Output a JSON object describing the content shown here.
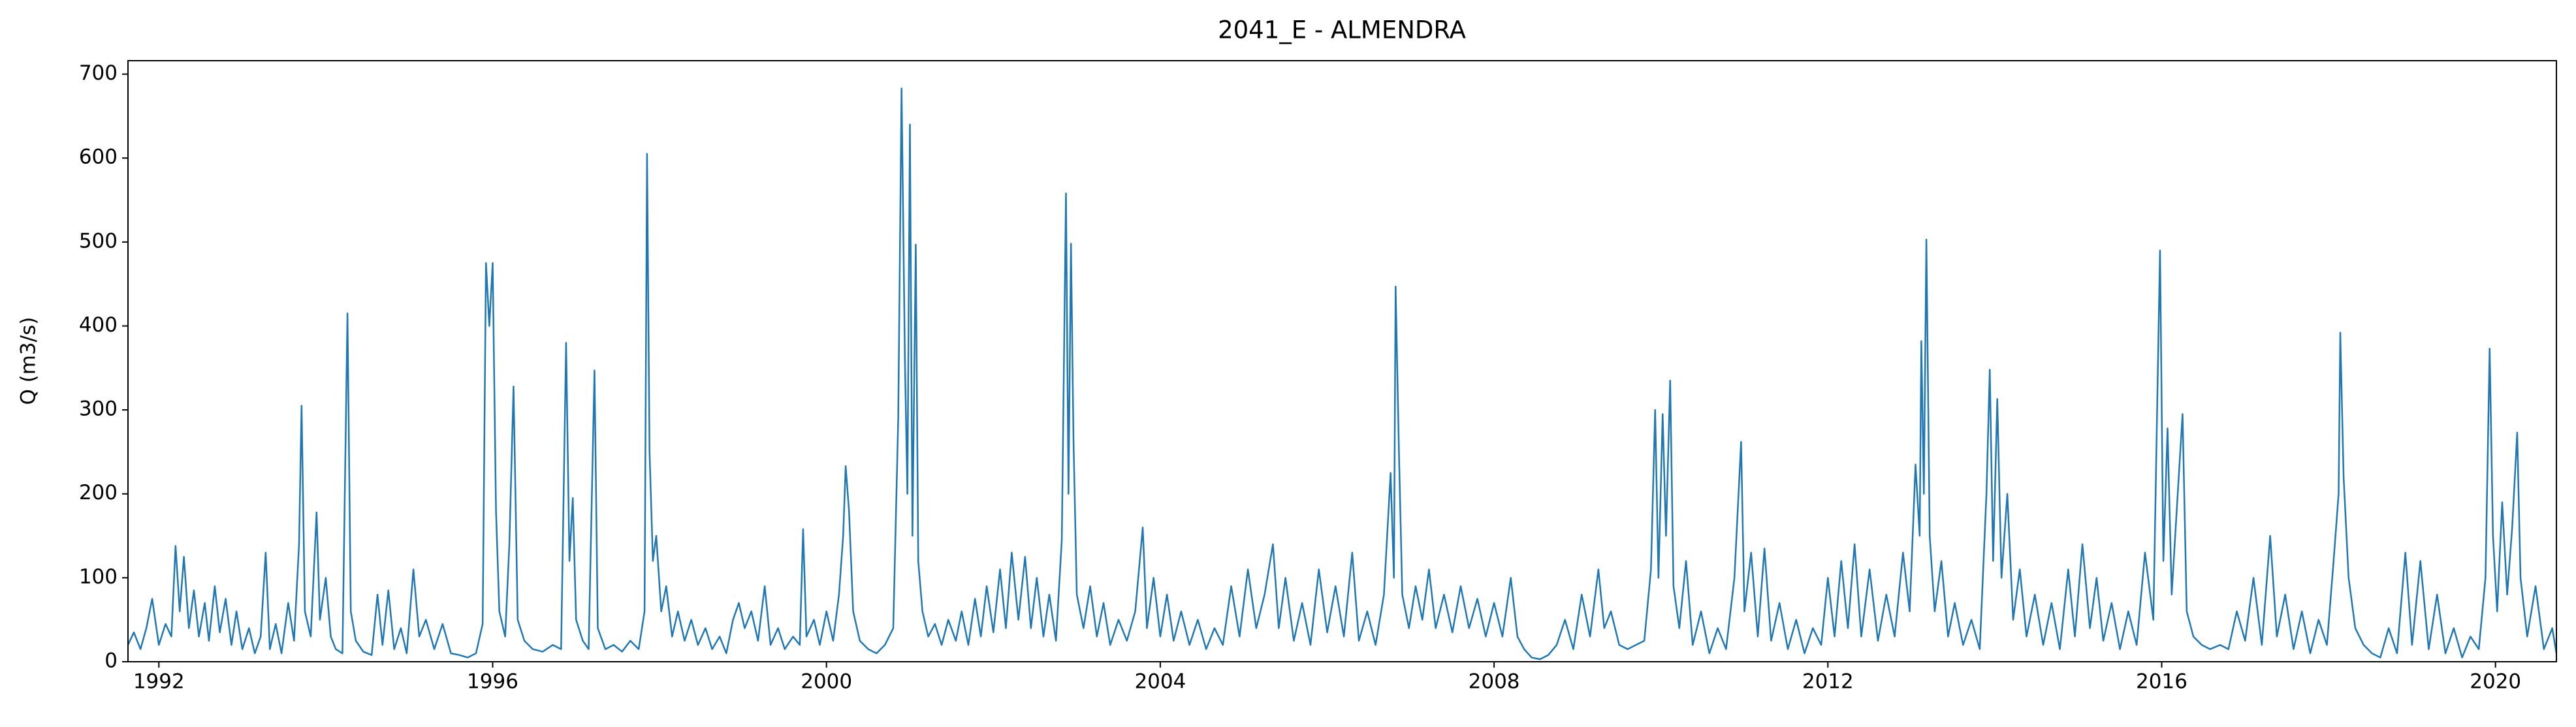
{
  "chart_data": {
    "type": "line",
    "title": "2041_E - ALMENDRA",
    "ylabel": "Q (m3/s)",
    "color": "#1f77b4",
    "xlim": [
      1991.63,
      2020.73
    ],
    "xticks": [
      1992,
      1996,
      2000,
      2004,
      2008,
      2012,
      2016,
      2020
    ],
    "ylim": [
      0,
      716
    ],
    "yticks": [
      0,
      100,
      200,
      300,
      400,
      500,
      600,
      700
    ],
    "x": [
      1991.63,
      1991.7,
      1991.78,
      1991.85,
      1991.92,
      1992.0,
      1992.08,
      1992.15,
      1992.2,
      1992.25,
      1992.3,
      1992.36,
      1992.42,
      1992.48,
      1992.55,
      1992.6,
      1992.67,
      1992.73,
      1992.8,
      1992.87,
      1992.93,
      1993.0,
      1993.08,
      1993.15,
      1993.22,
      1993.28,
      1993.33,
      1993.4,
      1993.47,
      1993.55,
      1993.62,
      1993.68,
      1993.71,
      1993.75,
      1993.82,
      1993.89,
      1993.93,
      1994.0,
      1994.06,
      1994.12,
      1994.2,
      1994.26,
      1994.3,
      1994.36,
      1994.45,
      1994.55,
      1994.62,
      1994.68,
      1994.75,
      1994.82,
      1994.9,
      1994.97,
      1995.05,
      1995.12,
      1995.2,
      1995.3,
      1995.4,
      1995.5,
      1995.6,
      1995.7,
      1995.8,
      1995.88,
      1995.92,
      1995.96,
      1996.0,
      1996.04,
      1996.08,
      1996.15,
      1996.2,
      1996.25,
      1996.3,
      1996.38,
      1996.48,
      1996.6,
      1996.72,
      1996.82,
      1996.88,
      1996.92,
      1996.96,
      1997.0,
      1997.08,
      1997.15,
      1997.22,
      1997.26,
      1997.35,
      1997.45,
      1997.55,
      1997.65,
      1997.75,
      1997.82,
      1997.85,
      1997.88,
      1997.92,
      1997.96,
      1998.02,
      1998.08,
      1998.15,
      1998.22,
      1998.3,
      1998.38,
      1998.46,
      1998.55,
      1998.63,
      1998.72,
      1998.8,
      1998.88,
      1998.95,
      1999.02,
      1999.1,
      1999.18,
      1999.26,
      1999.33,
      1999.42,
      1999.5,
      1999.6,
      1999.68,
      1999.72,
      1999.76,
      1999.85,
      1999.92,
      2000.0,
      2000.08,
      2000.15,
      2000.2,
      2000.23,
      2000.27,
      2000.32,
      2000.4,
      2000.5,
      2000.6,
      2000.7,
      2000.8,
      2000.86,
      2000.9,
      2000.94,
      2000.97,
      2001.0,
      2001.03,
      2001.07,
      2001.1,
      2001.15,
      2001.22,
      2001.3,
      2001.38,
      2001.46,
      2001.55,
      2001.62,
      2001.7,
      2001.78,
      2001.85,
      2001.92,
      2002.0,
      2002.08,
      2002.15,
      2002.22,
      2002.3,
      2002.38,
      2002.45,
      2002.52,
      2002.6,
      2002.67,
      2002.75,
      2002.82,
      2002.87,
      2002.9,
      2002.93,
      2002.96,
      2003.0,
      2003.08,
      2003.16,
      2003.24,
      2003.32,
      2003.4,
      2003.5,
      2003.6,
      2003.7,
      2003.79,
      2003.84,
      2003.92,
      2004.0,
      2004.08,
      2004.16,
      2004.25,
      2004.35,
      2004.45,
      2004.55,
      2004.65,
      2004.75,
      2004.85,
      2004.95,
      2005.05,
      2005.15,
      2005.25,
      2005.35,
      2005.42,
      2005.5,
      2005.6,
      2005.7,
      2005.8,
      2005.9,
      2006.0,
      2006.1,
      2006.2,
      2006.3,
      2006.38,
      2006.48,
      2006.58,
      2006.68,
      2006.76,
      2006.8,
      2006.82,
      2006.86,
      2006.9,
      2006.98,
      2007.06,
      2007.14,
      2007.22,
      2007.3,
      2007.4,
      2007.5,
      2007.6,
      2007.7,
      2007.8,
      2007.9,
      2008.0,
      2008.1,
      2008.2,
      2008.28,
      2008.36,
      2008.45,
      2008.55,
      2008.65,
      2008.75,
      2008.85,
      2008.95,
      2009.05,
      2009.15,
      2009.25,
      2009.32,
      2009.4,
      2009.5,
      2009.6,
      2009.7,
      2009.8,
      2009.88,
      2009.93,
      2009.97,
      2010.02,
      2010.06,
      2010.11,
      2010.15,
      2010.22,
      2010.3,
      2010.38,
      2010.48,
      2010.58,
      2010.68,
      2010.78,
      2010.88,
      2010.96,
      2011.0,
      2011.08,
      2011.16,
      2011.24,
      2011.32,
      2011.42,
      2011.52,
      2011.62,
      2011.72,
      2011.82,
      2011.92,
      2012.0,
      2012.08,
      2012.16,
      2012.24,
      2012.32,
      2012.4,
      2012.5,
      2012.6,
      2012.7,
      2012.8,
      2012.9,
      2012.98,
      2013.05,
      2013.1,
      2013.12,
      2013.15,
      2013.18,
      2013.22,
      2013.28,
      2013.36,
      2013.44,
      2013.52,
      2013.62,
      2013.72,
      2013.82,
      2013.9,
      2013.94,
      2013.98,
      2014.03,
      2014.08,
      2014.15,
      2014.22,
      2014.3,
      2014.38,
      2014.48,
      2014.58,
      2014.68,
      2014.78,
      2014.88,
      2014.96,
      2015.05,
      2015.14,
      2015.22,
      2015.3,
      2015.4,
      2015.5,
      2015.6,
      2015.7,
      2015.8,
      2015.9,
      2015.98,
      2016.02,
      2016.07,
      2016.12,
      2016.18,
      2016.25,
      2016.3,
      2016.38,
      2016.48,
      2016.58,
      2016.7,
      2016.8,
      2016.9,
      2017.0,
      2017.1,
      2017.2,
      2017.3,
      2017.38,
      2017.48,
      2017.58,
      2017.68,
      2017.78,
      2017.88,
      2017.98,
      2018.06,
      2018.12,
      2018.14,
      2018.18,
      2018.24,
      2018.32,
      2018.42,
      2018.52,
      2018.62,
      2018.72,
      2018.82,
      2018.92,
      2019.0,
      2019.1,
      2019.2,
      2019.3,
      2019.4,
      2019.5,
      2019.6,
      2019.7,
      2019.8,
      2019.88,
      2019.93,
      2019.97,
      2020.02,
      2020.08,
      2020.14,
      2020.2,
      2020.26,
      2020.3,
      2020.38,
      2020.48,
      2020.58,
      2020.68,
      2020.73
    ],
    "values": [
      20,
      35,
      15,
      40,
      75,
      20,
      45,
      30,
      138,
      60,
      125,
      40,
      85,
      30,
      70,
      25,
      90,
      35,
      75,
      20,
      60,
      15,
      40,
      10,
      30,
      130,
      15,
      45,
      10,
      70,
      25,
      140,
      305,
      60,
      30,
      178,
      50,
      100,
      30,
      15,
      10,
      415,
      60,
      25,
      12,
      8,
      80,
      20,
      85,
      15,
      40,
      10,
      110,
      30,
      50,
      15,
      45,
      10,
      8,
      5,
      10,
      45,
      475,
      400,
      475,
      180,
      60,
      30,
      140,
      328,
      50,
      25,
      15,
      12,
      20,
      15,
      380,
      120,
      195,
      50,
      25,
      15,
      347,
      40,
      15,
      20,
      12,
      25,
      15,
      60,
      605,
      250,
      120,
      150,
      60,
      90,
      30,
      60,
      25,
      50,
      20,
      40,
      15,
      30,
      10,
      50,
      70,
      40,
      60,
      25,
      90,
      20,
      40,
      15,
      30,
      20,
      158,
      30,
      50,
      20,
      60,
      25,
      80,
      150,
      233,
      180,
      60,
      25,
      15,
      10,
      20,
      40,
      290,
      683,
      360,
      200,
      640,
      150,
      497,
      120,
      60,
      30,
      45,
      20,
      50,
      25,
      60,
      20,
      75,
      30,
      90,
      35,
      110,
      40,
      130,
      50,
      125,
      40,
      100,
      30,
      80,
      25,
      145,
      558,
      200,
      498,
      265,
      80,
      40,
      90,
      30,
      70,
      20,
      50,
      25,
      60,
      160,
      40,
      100,
      30,
      80,
      25,
      60,
      20,
      50,
      15,
      40,
      20,
      90,
      30,
      110,
      40,
      80,
      140,
      40,
      100,
      25,
      70,
      20,
      110,
      35,
      90,
      30,
      130,
      25,
      60,
      20,
      80,
      225,
      100,
      447,
      250,
      80,
      40,
      90,
      50,
      110,
      40,
      80,
      35,
      90,
      40,
      75,
      30,
      70,
      30,
      100,
      30,
      15,
      5,
      3,
      8,
      20,
      50,
      15,
      80,
      30,
      110,
      40,
      60,
      20,
      15,
      20,
      25,
      110,
      300,
      100,
      295,
      150,
      335,
      90,
      40,
      120,
      20,
      60,
      10,
      40,
      15,
      100,
      262,
      60,
      130,
      30,
      135,
      25,
      70,
      15,
      50,
      10,
      40,
      20,
      100,
      30,
      120,
      40,
      140,
      30,
      110,
      25,
      80,
      30,
      130,
      60,
      235,
      150,
      382,
      200,
      503,
      150,
      60,
      120,
      30,
      70,
      20,
      50,
      15,
      200,
      348,
      120,
      313,
      100,
      200,
      50,
      110,
      30,
      80,
      20,
      70,
      15,
      110,
      30,
      140,
      40,
      100,
      25,
      70,
      15,
      60,
      20,
      130,
      50,
      490,
      120,
      278,
      80,
      180,
      295,
      60,
      30,
      20,
      15,
      20,
      15,
      60,
      25,
      100,
      20,
      150,
      30,
      80,
      15,
      60,
      10,
      50,
      20,
      120,
      200,
      392,
      220,
      100,
      40,
      20,
      10,
      5,
      40,
      10,
      130,
      20,
      120,
      15,
      80,
      10,
      40,
      5,
      30,
      15,
      100,
      373,
      150,
      60,
      190,
      80,
      160,
      273,
      100,
      30,
      90,
      15,
      40,
      10
    ]
  }
}
